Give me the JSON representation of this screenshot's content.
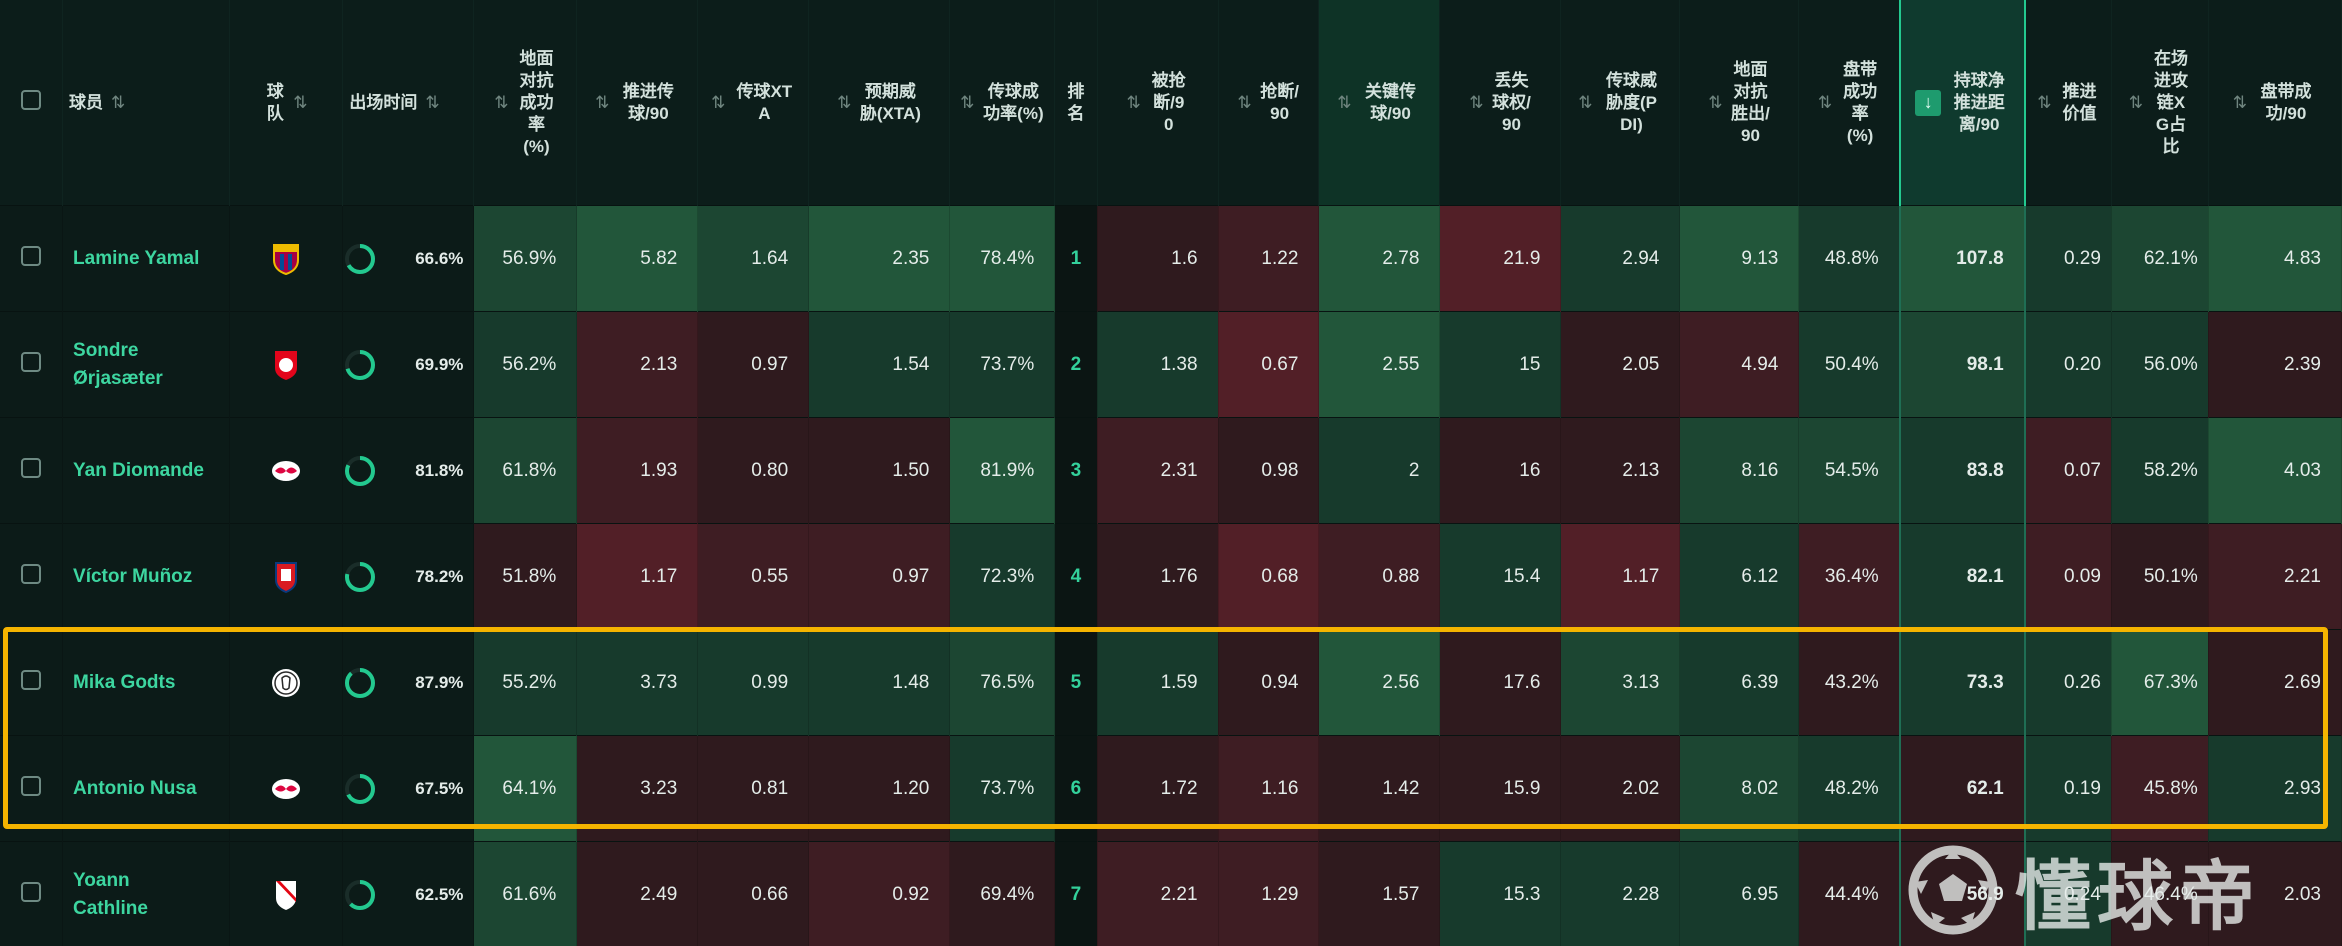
{
  "colors": {
    "accent": "#23c98f",
    "player_name": "#3dd6a0",
    "highlight_box": "#f5b400",
    "good_cell": "#1f4a34",
    "bad_cell": "#4a1c22",
    "neutral_cell": "#1b2e28"
  },
  "headers": [
    {
      "key": "select",
      "label": "",
      "sortable": false
    },
    {
      "key": "player",
      "label": "球员",
      "sortable": true
    },
    {
      "key": "team",
      "label": "球队",
      "sortable": true
    },
    {
      "key": "minutes",
      "label": "出场时间",
      "sortable": true
    },
    {
      "key": "duel_success",
      "label": "地面对抗成功率(%)",
      "sortable": true
    },
    {
      "key": "prog_passes",
      "label": "推进传球/90",
      "sortable": true
    },
    {
      "key": "pass_xta",
      "label": "传球XTA",
      "sortable": true
    },
    {
      "key": "xta",
      "label": "预期威胁(XTA)",
      "sortable": true
    },
    {
      "key": "pass_success",
      "label": "传球成功率(%)",
      "sortable": true
    },
    {
      "key": "rank",
      "label": "排名",
      "sortable": false
    },
    {
      "key": "dispossessed",
      "label": "被抢断/90",
      "sortable": true
    },
    {
      "key": "tackles",
      "label": "抢断/90",
      "sortable": true
    },
    {
      "key": "key_passes",
      "label": "关键传球/90",
      "sortable": true
    },
    {
      "key": "lost_poss",
      "label": "丢失球权/90",
      "sortable": true
    },
    {
      "key": "pdi",
      "label": "传球威胁度(PDI)",
      "sortable": true
    },
    {
      "key": "duels_won",
      "label": "地面对抗胜出/90",
      "sortable": true
    },
    {
      "key": "dribble_success",
      "label": "盘带成功率(%)",
      "sortable": true
    },
    {
      "key": "carry_dist",
      "label": "持球净推进距离/90",
      "sortable": true,
      "sorted": "desc"
    },
    {
      "key": "prog_value",
      "label": "推进价值",
      "sortable": true
    },
    {
      "key": "xg_chain",
      "label": "在场进攻链XG占比",
      "sortable": true
    },
    {
      "key": "dribbles",
      "label": "盘带成功/90",
      "sortable": true
    }
  ],
  "rows": [
    {
      "player": "Lamine Yamal",
      "team": "barcelona-crest",
      "minutes": "66.6%",
      "minutes_frac": 0.666,
      "values": [
        "56.9%",
        "5.82",
        "1.64",
        "2.35",
        "78.4%",
        "1",
        "1.6",
        "1.22",
        "2.78",
        "21.9",
        "2.94",
        "9.13",
        "48.8%",
        "107.8",
        "0.29",
        "62.1%",
        "4.83"
      ],
      "tones": [
        "g2",
        "g3",
        "g2",
        "g3",
        "g3",
        "rank",
        "r1",
        "r2",
        "g3",
        "r3",
        "g1",
        "g3",
        "g1",
        "g3",
        "g1",
        "g2",
        "g3"
      ]
    },
    {
      "player": "Sondre Ørjasæter",
      "team": "twente-crest",
      "minutes": "69.9%",
      "minutes_frac": 0.699,
      "values": [
        "56.2%",
        "2.13",
        "0.97",
        "1.54",
        "73.7%",
        "2",
        "1.38",
        "0.67",
        "2.55",
        "15",
        "2.05",
        "4.94",
        "50.4%",
        "98.1",
        "0.20",
        "56.0%",
        "2.39"
      ],
      "tones": [
        "g1",
        "r2",
        "r1",
        "g1",
        "g1",
        "rank",
        "g1",
        "r3",
        "g3",
        "g1",
        "r1",
        "r2",
        "g1",
        "g2",
        "g1",
        "g1",
        "r1"
      ]
    },
    {
      "player": "Yan Diomande",
      "team": "leipzig-crest",
      "minutes": "81.8%",
      "minutes_frac": 0.818,
      "values": [
        "61.8%",
        "1.93",
        "0.80",
        "1.50",
        "81.9%",
        "3",
        "2.31",
        "0.98",
        "2",
        "16",
        "2.13",
        "8.16",
        "54.5%",
        "83.8",
        "0.07",
        "58.2%",
        "4.03"
      ],
      "tones": [
        "g2",
        "r2",
        "r1",
        "r1",
        "g3",
        "rank",
        "r2",
        "r1",
        "g1",
        "r1",
        "r1",
        "g2",
        "g2",
        "g1",
        "r2",
        "g1",
        "g3"
      ]
    },
    {
      "player": "Víctor Muñoz",
      "team": "osasuna-crest",
      "minutes": "78.2%",
      "minutes_frac": 0.782,
      "values": [
        "51.8%",
        "1.17",
        "0.55",
        "0.97",
        "72.3%",
        "4",
        "1.76",
        "0.68",
        "0.88",
        "15.4",
        "1.17",
        "6.12",
        "36.4%",
        "82.1",
        "0.09",
        "50.1%",
        "2.21"
      ],
      "tones": [
        "r1",
        "r3",
        "r2",
        "r2",
        "g1",
        "rank",
        "r1",
        "r3",
        "r2",
        "g1",
        "r3",
        "g1",
        "r2",
        "g1",
        "r2",
        "r1",
        "r2"
      ]
    },
    {
      "player": "Mika Godts",
      "team": "ajax-crest",
      "minutes": "87.9%",
      "minutes_frac": 0.879,
      "values": [
        "55.2%",
        "3.73",
        "0.99",
        "1.48",
        "76.5%",
        "5",
        "1.59",
        "0.94",
        "2.56",
        "17.6",
        "3.13",
        "6.39",
        "43.2%",
        "73.3",
        "0.26",
        "67.3%",
        "2.69"
      ],
      "tones": [
        "g1",
        "g1",
        "g1",
        "g1",
        "g2",
        "rank",
        "g1",
        "r1",
        "g3",
        "r1",
        "g2",
        "g1",
        "r1",
        "g1",
        "g1",
        "g3",
        "r1"
      ]
    },
    {
      "player": "Antonio Nusa",
      "team": "leipzig-crest",
      "minutes": "67.5%",
      "minutes_frac": 0.675,
      "values": [
        "64.1%",
        "3.23",
        "0.81",
        "1.20",
        "73.7%",
        "6",
        "1.72",
        "1.16",
        "1.42",
        "15.9",
        "2.02",
        "8.02",
        "48.2%",
        "62.1",
        "0.19",
        "45.8%",
        "2.93"
      ],
      "tones": [
        "g3",
        "r1",
        "r1",
        "r1",
        "g1",
        "rank",
        "r1",
        "r2",
        "r1",
        "r1",
        "r1",
        "g2",
        "g1",
        "r1",
        "g1",
        "r2",
        "g1"
      ]
    },
    {
      "player": "Yoann Cathline",
      "team": "utrecht-crest",
      "minutes": "62.5%",
      "minutes_frac": 0.625,
      "values": [
        "61.6%",
        "2.49",
        "0.66",
        "0.92",
        "69.4%",
        "7",
        "2.21",
        "1.29",
        "1.57",
        "15.3",
        "2.28",
        "6.95",
        "44.4%",
        "56.9",
        "0.24",
        "46.4%",
        "2.03"
      ],
      "tones": [
        "g2",
        "r1",
        "r1",
        "r2",
        "r1",
        "rank",
        "r2",
        "r2",
        "r1",
        "g1",
        "g1",
        "g1",
        "r1",
        "r1",
        "g1",
        "r1",
        "r1"
      ]
    }
  ],
  "watermark": {
    "text": "懂球帝",
    "icon": "soccer-ball-icon"
  }
}
